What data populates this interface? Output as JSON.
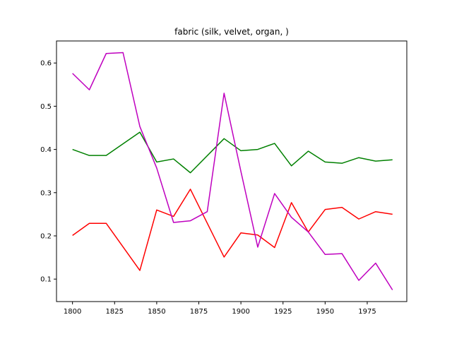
{
  "chart_data": {
    "type": "line",
    "title": "fabric (silk, velvet, organ, )",
    "xlabel": "",
    "ylabel": "",
    "xlim": [
      1790.5,
      1998.5
    ],
    "ylim": [
      0.048,
      0.651
    ],
    "xticks": [
      1800,
      1825,
      1850,
      1875,
      1900,
      1925,
      1950,
      1975
    ],
    "yticks": [
      0.1,
      0.2,
      0.3,
      0.4,
      0.5,
      0.6
    ],
    "ytick_labels": [
      "0.1",
      "0.2",
      "0.3",
      "0.4",
      "0.5",
      "0.6"
    ],
    "grid": false,
    "legend": "none",
    "x": [
      1800,
      1810,
      1820,
      1830,
      1840,
      1850,
      1860,
      1870,
      1880,
      1890,
      1900,
      1910,
      1920,
      1930,
      1940,
      1950,
      1960,
      1970,
      1980,
      1990
    ],
    "series": [
      {
        "color": "#ff0000",
        "values": [
          0.201,
          0.229,
          0.229,
          null,
          0.12,
          0.26,
          0.245,
          0.308,
          null,
          0.151,
          0.207,
          0.202,
          0.173,
          0.277,
          0.209,
          0.261,
          0.266,
          0.239,
          0.256,
          0.25
        ]
      },
      {
        "color": "#008000",
        "values": [
          0.4,
          0.386,
          0.386,
          null,
          0.44,
          0.371,
          0.378,
          0.346,
          null,
          0.425,
          0.397,
          0.4,
          0.414,
          0.362,
          0.396,
          0.371,
          0.368,
          0.381,
          0.373,
          0.376
        ]
      },
      {
        "color": "#bf00bf",
        "values": [
          0.576,
          0.538,
          0.622,
          0.624,
          0.453,
          0.357,
          0.231,
          0.235,
          0.256,
          0.53,
          0.349,
          0.174,
          0.298,
          0.243,
          0.209,
          0.157,
          0.159,
          0.097,
          0.137,
          0.075
        ]
      }
    ]
  }
}
